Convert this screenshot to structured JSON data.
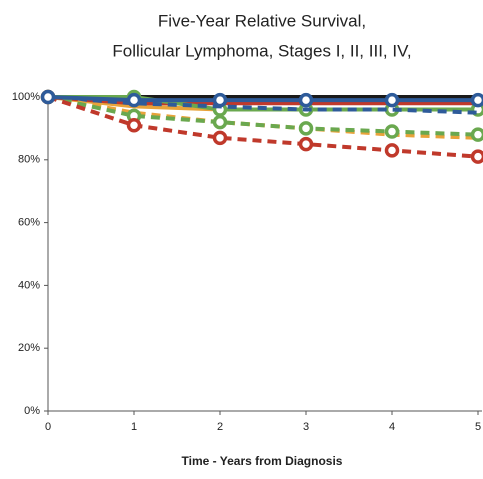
{
  "chart_data": {
    "type": "line",
    "title": "Five-Year Relative Survival,",
    "subtitle": "Follicular Lymphoma, Stages I, II, III, IV,",
    "x_label": "Time - Years from Diagnosis",
    "x": [
      0,
      1,
      2,
      3,
      4,
      5
    ],
    "xlim": [
      0,
      5
    ],
    "xticks": [
      0,
      1,
      2,
      3,
      4,
      5
    ],
    "ylim": [
      0,
      100
    ],
    "yticks": [
      {
        "value": 0,
        "label": "0%"
      },
      {
        "value": 20,
        "label": "20%"
      },
      {
        "value": 40,
        "label": "40%"
      },
      {
        "value": 60,
        "label": "60%"
      },
      {
        "value": 80,
        "label": "80%"
      },
      {
        "value": 100,
        "label": "100%"
      }
    ],
    "series": [
      {
        "color": "#1a1a1a",
        "dashed": false,
        "markers": false,
        "values": [
          100,
          100,
          100,
          100,
          100,
          100
        ]
      },
      {
        "color": "#e8a33a",
        "dashed": false,
        "markers": false,
        "values": [
          100,
          97,
          96,
          96,
          96,
          96
        ]
      },
      {
        "color": "#c0392b",
        "dashed": false,
        "markers": false,
        "values": [
          100,
          98,
          98,
          98,
          98,
          98
        ]
      },
      {
        "color": "#6aa84f",
        "dashed": false,
        "markers": true,
        "values": [
          100,
          100,
          96,
          96,
          96,
          96
        ]
      },
      {
        "color": "#2e5b9a",
        "dashed": true,
        "markers": false,
        "values": [
          100,
          98,
          97,
          96,
          96,
          95
        ]
      },
      {
        "color": "#e8a33a",
        "dashed": true,
        "markers": false,
        "values": [
          100,
          95,
          92,
          90,
          88,
          87
        ]
      },
      {
        "color": "#6aa84f",
        "dashed": true,
        "markers": true,
        "values": [
          100,
          94,
          92,
          90,
          89,
          88
        ]
      },
      {
        "color": "#c0392b",
        "dashed": true,
        "markers": true,
        "values": [
          100,
          91,
          87,
          85,
          83,
          81
        ]
      },
      {
        "color": "#2e5b9a",
        "dashed": false,
        "markers": true,
        "values": [
          100,
          99,
          99,
          99,
          99,
          99
        ]
      }
    ]
  }
}
